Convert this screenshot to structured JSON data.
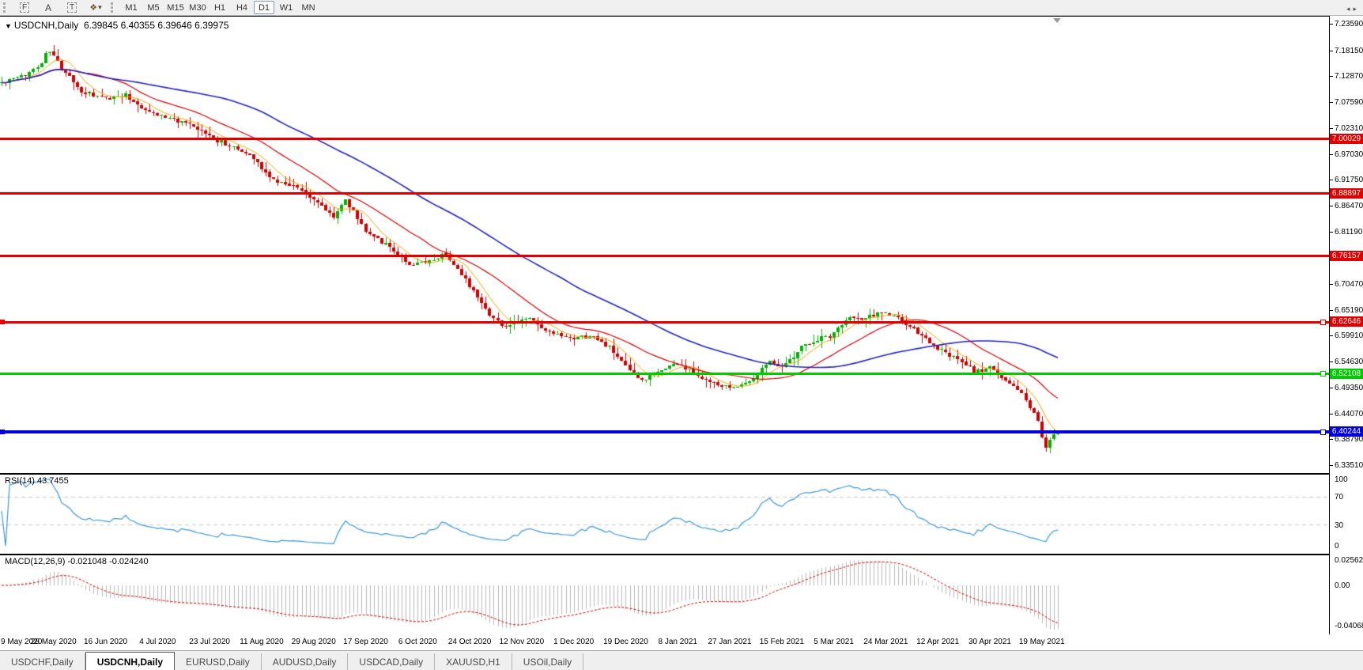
{
  "toolbar": {
    "icons": [
      {
        "name": "fibonacci-tool-icon",
        "glyph": "F"
      },
      {
        "name": "text-label-tool-icon",
        "glyph": "A"
      },
      {
        "name": "text-tool-icon",
        "glyph": "T"
      },
      {
        "name": "arrows-tool-icon",
        "glyph": "❖"
      },
      {
        "name": "arrows-dropdown-caret-icon",
        "glyph": "▾"
      }
    ],
    "timeframes": [
      "M1",
      "M5",
      "M15",
      "M30",
      "H1",
      "H4",
      "D1",
      "W1",
      "MN"
    ],
    "active_timeframe": "D1"
  },
  "chart": {
    "title_symbol": "USDCNH,Daily",
    "title_ohlc": "6.39845 6.40355 6.39646 6.39975",
    "dropdown_triangle": "▼"
  },
  "chart_data": {
    "type": "candlestick",
    "symbol": "USDCNH",
    "timeframe": "Daily",
    "last_bar": {
      "open": 6.39845,
      "high": 6.40355,
      "low": 6.39646,
      "close": 6.39975
    },
    "price_axis": {
      "top_price": 7.2359,
      "bottom_price": 6.3351
    },
    "y_ticks": [
      {
        "label": "7.23590",
        "value": 7.2359
      },
      {
        "label": "7.18150",
        "value": 7.1815
      },
      {
        "label": "7.12870",
        "value": 7.1287
      },
      {
        "label": "7.07590",
        "value": 7.0759
      },
      {
        "label": "7.02310",
        "value": 7.0231
      },
      {
        "label": "6.97030",
        "value": 6.9703
      },
      {
        "label": "6.91750",
        "value": 6.9175
      },
      {
        "label": "6.86470",
        "value": 6.8647
      },
      {
        "label": "6.81190",
        "value": 6.8119
      },
      {
        "label": "6.75910",
        "value": 6.7591
      },
      {
        "label": "6.70470",
        "value": 6.7047
      },
      {
        "label": "6.65190",
        "value": 6.6519
      },
      {
        "label": "6.59910",
        "value": 6.5991
      },
      {
        "label": "6.54630",
        "value": 6.5463
      },
      {
        "label": "6.49350",
        "value": 6.4935
      },
      {
        "label": "6.44070",
        "value": 6.4407
      },
      {
        "label": "6.38790",
        "value": 6.3879
      },
      {
        "label": "6.33510",
        "value": 6.3351
      }
    ],
    "hlines": [
      {
        "label": "7.00029",
        "value": 7.00029,
        "color": "#e00000",
        "thickness": 3
      },
      {
        "label": "6.88897",
        "value": 6.88897,
        "color": "#e00000",
        "thickness": 3
      },
      {
        "label": "6.76157",
        "value": 6.76157,
        "color": "#e00000",
        "thickness": 3
      },
      {
        "label": "6.62646",
        "value": 6.62646,
        "color": "#e00000",
        "thickness": 3,
        "marker": true,
        "edge_marker": true
      },
      {
        "label": "6.52108",
        "value": 6.52108,
        "color": "#00cc00",
        "thickness": 3,
        "marker": true
      },
      {
        "label": "6.40244",
        "value": 6.40244,
        "color": "#0000dd",
        "thickness": 4,
        "marker": true,
        "edge_marker": true
      }
    ],
    "x_labels": [
      "9 May 2020",
      "28 May 2020",
      "16 Jun 2020",
      "4 Jul 2020",
      "23 Jul 2020",
      "11 Aug 2020",
      "29 Aug 2020",
      "17 Sep 2020",
      "6 Oct 2020",
      "24 Oct 2020",
      "12 Nov 2020",
      "1 Dec 2020",
      "19 Dec 2020",
      "8 Jan 2021",
      "27 Jan 2021",
      "15 Feb 2021",
      "5 Mar 2021",
      "24 Mar 2021",
      "12 Apr 2021",
      "30 Apr 2021",
      "19 May 2021"
    ],
    "candle_count": 265,
    "candles_per_x_label": 13,
    "close_anchors": [
      [
        0.0,
        7.115
      ],
      [
        0.022,
        7.13
      ],
      [
        0.038,
        7.158
      ],
      [
        0.044,
        7.185
      ],
      [
        0.056,
        7.148
      ],
      [
        0.075,
        7.098
      ],
      [
        0.097,
        7.082
      ],
      [
        0.116,
        7.092
      ],
      [
        0.138,
        7.058
      ],
      [
        0.161,
        7.041
      ],
      [
        0.18,
        7.026
      ],
      [
        0.198,
        7.005
      ],
      [
        0.217,
        6.986
      ],
      [
        0.24,
        6.962
      ],
      [
        0.254,
        6.921
      ],
      [
        0.277,
        6.905
      ],
      [
        0.299,
        6.872
      ],
      [
        0.314,
        6.842
      ],
      [
        0.326,
        6.876
      ],
      [
        0.344,
        6.816
      ],
      [
        0.359,
        6.792
      ],
      [
        0.374,
        6.768
      ],
      [
        0.389,
        6.742
      ],
      [
        0.408,
        6.752
      ],
      [
        0.419,
        6.77
      ],
      [
        0.434,
        6.727
      ],
      [
        0.449,
        6.687
      ],
      [
        0.464,
        6.638
      ],
      [
        0.479,
        6.616
      ],
      [
        0.498,
        6.638
      ],
      [
        0.516,
        6.607
      ],
      [
        0.539,
        6.59
      ],
      [
        0.558,
        6.6
      ],
      [
        0.576,
        6.574
      ],
      [
        0.591,
        6.535
      ],
      [
        0.606,
        6.505
      ],
      [
        0.621,
        6.526
      ],
      [
        0.64,
        6.543
      ],
      [
        0.659,
        6.518
      ],
      [
        0.674,
        6.501
      ],
      [
        0.689,
        6.492
      ],
      [
        0.711,
        6.51
      ],
      [
        0.726,
        6.55
      ],
      [
        0.741,
        6.535
      ],
      [
        0.756,
        6.575
      ],
      [
        0.771,
        6.59
      ],
      [
        0.786,
        6.6
      ],
      [
        0.801,
        6.638
      ],
      [
        0.816,
        6.631
      ],
      [
        0.831,
        6.648
      ],
      [
        0.846,
        6.638
      ],
      [
        0.861,
        6.615
      ],
      [
        0.876,
        6.59
      ],
      [
        0.891,
        6.566
      ],
      [
        0.906,
        6.55
      ],
      [
        0.921,
        6.526
      ],
      [
        0.936,
        6.534
      ],
      [
        0.95,
        6.509
      ],
      [
        0.965,
        6.485
      ],
      [
        0.98,
        6.429
      ],
      [
        0.988,
        6.372
      ],
      [
        0.994,
        6.39
      ],
      [
        1.0,
        6.3998
      ]
    ],
    "moving_averages": [
      {
        "period": 7,
        "color": "#eda500",
        "width": 1
      },
      {
        "period": 21,
        "color": "#d40000",
        "width": 1.2
      },
      {
        "period": 56,
        "color": "#2323bd",
        "width": 1.6
      }
    ],
    "indicators": [
      {
        "name": "RSI",
        "period": 14,
        "value": 43.7455
      },
      {
        "name": "MACD",
        "fast": 12,
        "slow": 26,
        "signal": 9,
        "value": -0.021048,
        "signal_value": -0.02424
      }
    ]
  },
  "rsi_panel": {
    "label": "RSI(14) 43.7455",
    "levels": [
      {
        "label": "100",
        "value": 100
      },
      {
        "label": "70",
        "value": 70,
        "dashed": true
      },
      {
        "label": "30",
        "value": 30,
        "dashed": true
      },
      {
        "label": "0",
        "value": 0
      }
    ],
    "line_color": "#3a97e0"
  },
  "macd_panel": {
    "label": "MACD(12,26,9) -0.021048 -0.024240",
    "axis": [
      {
        "label": "0.025623",
        "value": 0.025623
      },
      {
        "label": "0.00",
        "value": 0
      },
      {
        "label": "-0.040687",
        "value": -0.040687
      }
    ],
    "histogram_color": "#b9b9b9",
    "signal_color": "#d40000"
  },
  "tabs": {
    "items": [
      {
        "label": "USDCHF,Daily",
        "active": false
      },
      {
        "label": "USDCNH,Daily",
        "active": true
      },
      {
        "label": "EURUSD,Daily",
        "active": false
      },
      {
        "label": "AUDUSD,Daily",
        "active": false
      },
      {
        "label": "USDCAD,Daily",
        "active": false
      },
      {
        "label": "XAUUSD,H1",
        "active": false
      },
      {
        "label": "USOil,Daily",
        "active": false
      }
    ],
    "left_arrow": "◂",
    "right_arrow": "▸"
  },
  "colors": {
    "bull_candle": "#00b200",
    "bear_candle": "#d40000",
    "background": "#ffffff",
    "axis_text": "#000000"
  }
}
